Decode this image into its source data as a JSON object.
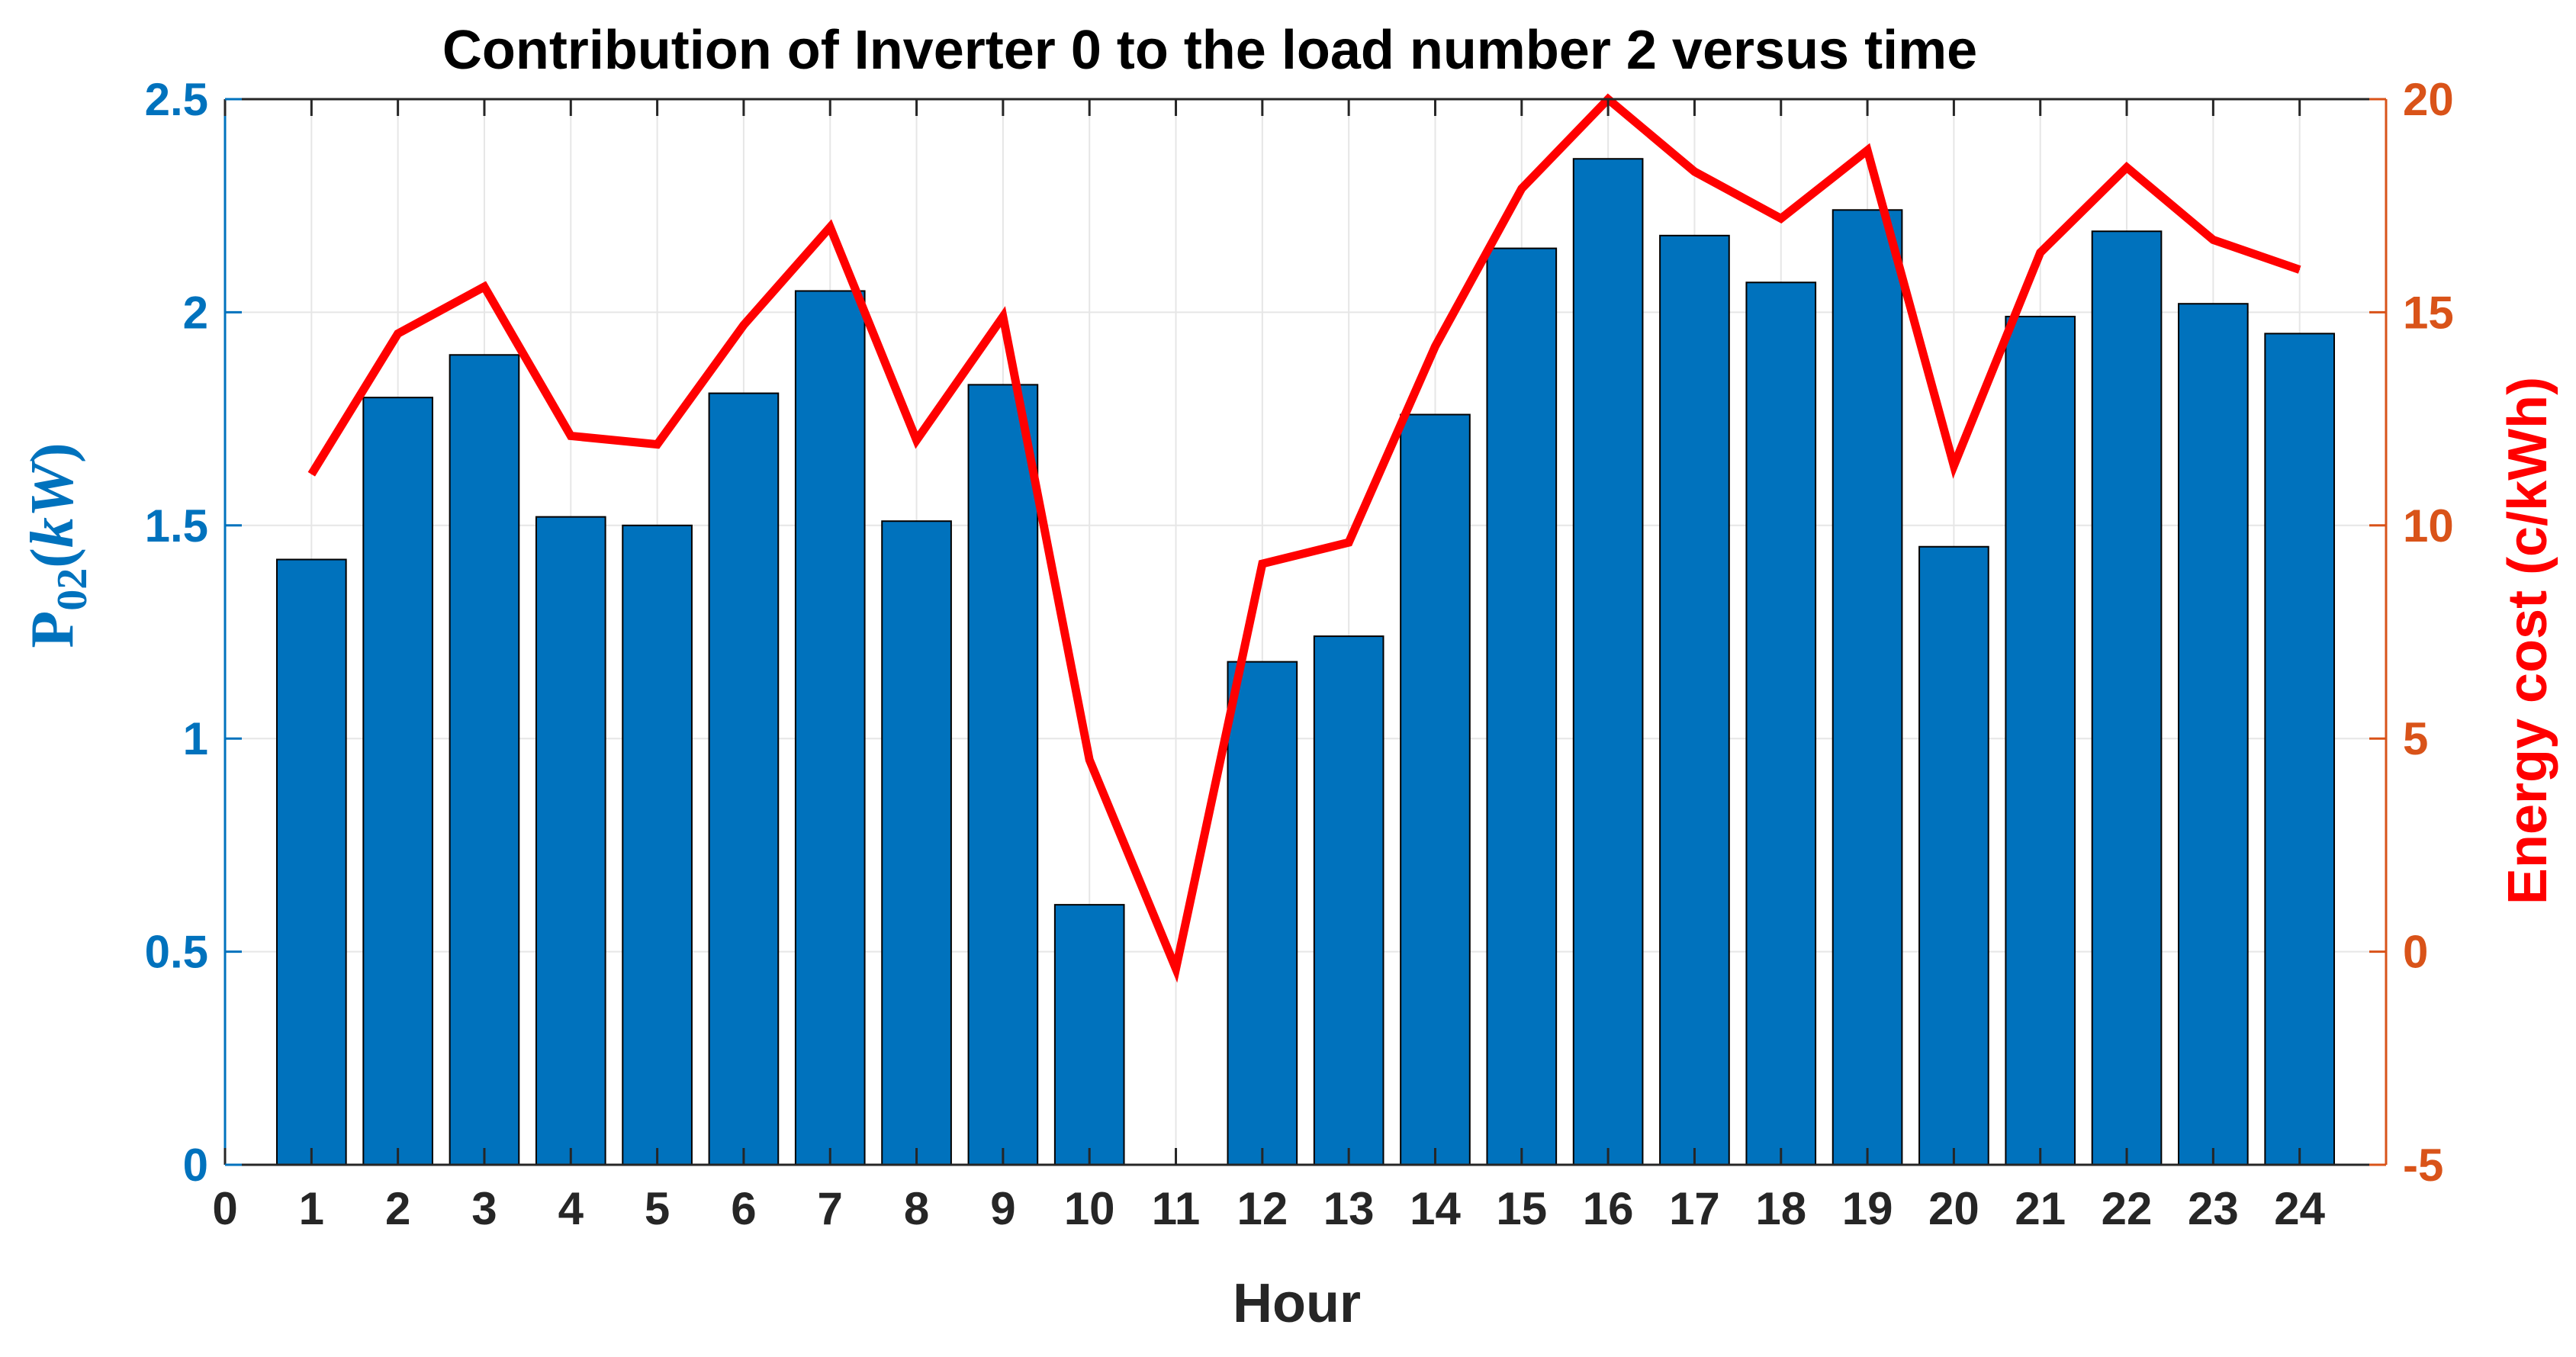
{
  "chart_data": {
    "type": "bar",
    "title": "Contribution of Inverter 0 to the load number 2 versus time",
    "xlabel": "Hour",
    "ylabel_left": {
      "prefix": "P",
      "subscript": "02",
      "open": "(",
      "unit": "kW",
      "close": ")"
    },
    "ylabel_right": "Energy cost (c/kWh)",
    "xlim": [
      0,
      25
    ],
    "ylim_left": [
      0,
      2.5
    ],
    "ylim_right": [
      -5,
      20
    ],
    "x_ticks": [
      "0",
      "1",
      "2",
      "3",
      "4",
      "5",
      "6",
      "7",
      "8",
      "9",
      "10",
      "11",
      "12",
      "13",
      "14",
      "15",
      "16",
      "17",
      "18",
      "19",
      "20",
      "21",
      "22",
      "23",
      "24"
    ],
    "y_left_ticks": [
      "0",
      "0.5",
      "1",
      "1.5",
      "2",
      "2.5"
    ],
    "y_right_ticks": [
      "-5",
      "0",
      "5",
      "10",
      "15",
      "20"
    ],
    "grid": true,
    "bar_color": "#0072BD",
    "line_color": "#FF0000",
    "left_axis_color": "#0072BD",
    "right_axis_color": "#D95319",
    "series": [
      {
        "axis": "left",
        "kind": "bar",
        "x": [
          1,
          2,
          3,
          4,
          5,
          6,
          7,
          8,
          9,
          10,
          11,
          12,
          13,
          14,
          15,
          16,
          17,
          18,
          19,
          20,
          21,
          22,
          23,
          24
        ],
        "values": [
          1.42,
          1.8,
          1.9,
          1.52,
          1.5,
          1.81,
          2.05,
          1.51,
          1.83,
          0.61,
          0,
          1.18,
          1.24,
          1.76,
          2.15,
          2.36,
          2.18,
          2.07,
          2.24,
          1.45,
          1.99,
          2.19,
          2.02,
          1.95
        ]
      },
      {
        "axis": "right",
        "kind": "line",
        "x": [
          1,
          2,
          3,
          4,
          5,
          6,
          7,
          8,
          9,
          10,
          11,
          12,
          13,
          14,
          15,
          16,
          17,
          18,
          19,
          20,
          21,
          22,
          23,
          24
        ],
        "values": [
          11.2,
          14.5,
          15.6,
          12.1,
          11.9,
          14.7,
          17.0,
          12.0,
          14.9,
          4.5,
          -0.4,
          9.1,
          9.6,
          14.2,
          17.9,
          20.0,
          18.3,
          17.2,
          18.8,
          11.4,
          16.4,
          18.4,
          16.7,
          16.0
        ]
      }
    ]
  }
}
